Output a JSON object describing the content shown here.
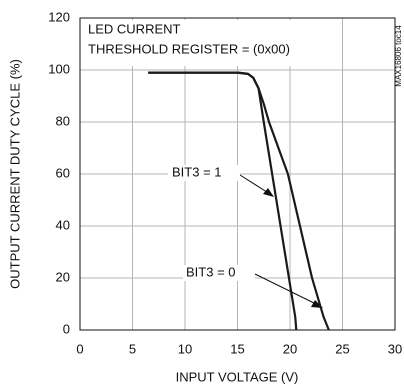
{
  "chart_data": {
    "type": "line",
    "xlabel": "INPUT VOLTAGE (V)",
    "ylabel": "OUTPUT CURRENT DUTY CYCLE (%)",
    "annotations": [
      "LED CURRENT",
      "THRESHOLD REGISTER = (0x00)",
      "BIT3 = 1",
      "BIT3 = 0",
      "MAX16806 toc14"
    ],
    "xlim": [
      0,
      30
    ],
    "xticks": [
      0,
      5,
      10,
      15,
      20,
      25,
      30
    ],
    "ylim": [
      0,
      120
    ],
    "yticks": [
      0,
      20,
      40,
      60,
      80,
      100,
      120
    ],
    "grid": true,
    "series": [
      {
        "color": "#1a1a1a",
        "x": [
          6.5,
          15,
          16,
          16.5,
          17,
          17.5,
          18.5,
          19.5,
          20.5,
          20.6
        ],
        "values": [
          99,
          99,
          98.5,
          97,
          93,
          80,
          55,
          30,
          5,
          0
        ]
      },
      {
        "color": "#1a1a1a",
        "x": [
          6.5,
          15,
          16,
          16.5,
          17,
          17.5,
          18,
          19.8,
          22.1,
          23.2,
          23.7
        ],
        "values": [
          99,
          99,
          98.5,
          97,
          93,
          87,
          80,
          60,
          20,
          5,
          0
        ]
      }
    ]
  }
}
